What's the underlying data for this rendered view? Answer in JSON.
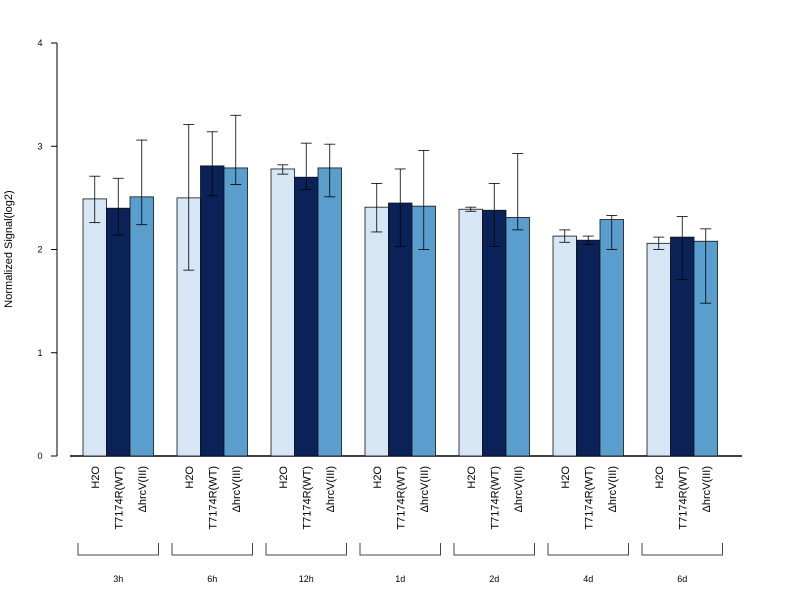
{
  "chart_data": {
    "type": "bar",
    "ylabel": "Normalized Signal(log2)",
    "ylim": [
      0,
      4
    ],
    "yticks": [
      "0",
      "1",
      "2",
      "3",
      "4"
    ],
    "groups": [
      "3h",
      "6h",
      "12h",
      "1d",
      "2d",
      "4d",
      "6d"
    ],
    "series": [
      {
        "name": "H2O",
        "color": "#D6E6F5",
        "values": [
          2.49,
          2.5,
          2.78,
          2.41,
          2.39,
          2.13,
          2.06
        ],
        "err_low": [
          2.26,
          1.8,
          2.73,
          2.17,
          2.37,
          2.07,
          2.0
        ],
        "err_high": [
          2.71,
          3.21,
          2.82,
          2.64,
          2.41,
          2.19,
          2.12
        ]
      },
      {
        "name": "T7174R(WT)",
        "color": "#0A2257",
        "values": [
          2.4,
          2.81,
          2.7,
          2.45,
          2.38,
          2.09,
          2.12
        ],
        "err_low": [
          2.14,
          2.52,
          2.58,
          2.03,
          2.03,
          2.05,
          1.71
        ],
        "err_high": [
          2.69,
          3.14,
          3.03,
          2.78,
          2.64,
          2.13,
          2.32
        ]
      },
      {
        "name": "ΔhrcV(III)",
        "color": "#5A9ECE",
        "values": [
          2.51,
          2.79,
          2.79,
          2.42,
          2.31,
          2.29,
          2.08
        ],
        "err_low": [
          2.24,
          2.63,
          2.51,
          2.0,
          2.19,
          2.0,
          1.48
        ],
        "err_high": [
          3.06,
          3.3,
          3.02,
          2.96,
          2.93,
          2.33,
          2.2
        ]
      }
    ],
    "grid": false,
    "legend": "none"
  }
}
